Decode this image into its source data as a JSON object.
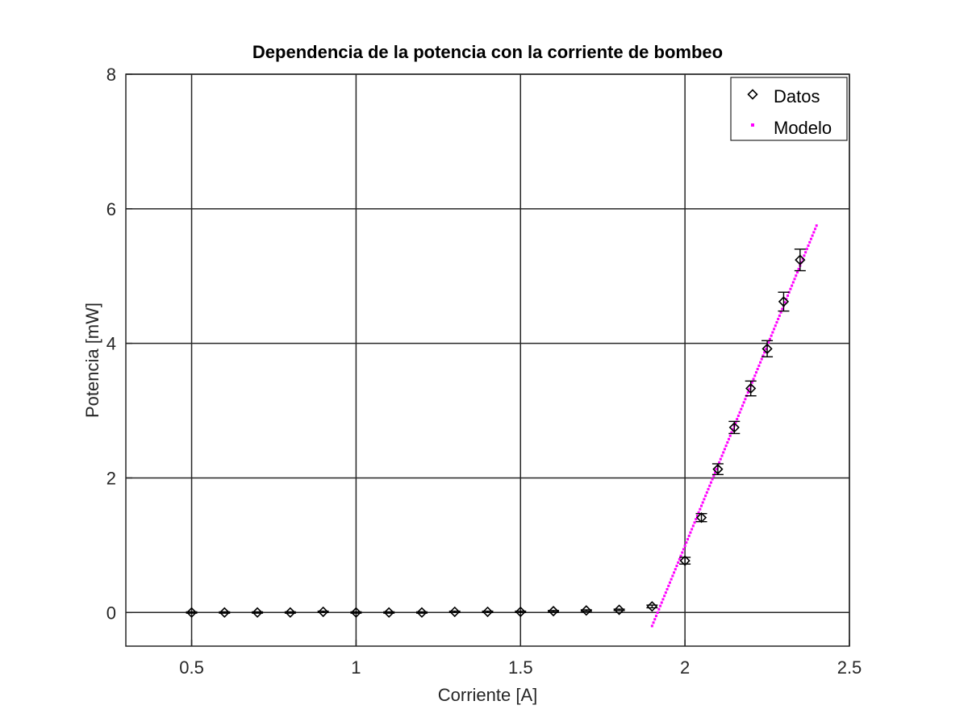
{
  "chart_data": {
    "type": "scatter",
    "title": "Dependencia de la potencia con la corriente de bombeo",
    "xlabel": "Corriente [A]",
    "ylabel": "Potencia [mW]",
    "xlim": [
      0.3,
      2.5
    ],
    "ylim": [
      -0.5,
      8
    ],
    "xticks": [
      0.5,
      1,
      1.5,
      2,
      2.5
    ],
    "xtick_labels": [
      "0.5",
      "1",
      "1.5",
      "2",
      "2.5"
    ],
    "yticks": [
      0,
      2,
      4,
      6,
      8
    ],
    "ytick_labels": [
      "0",
      "2",
      "4",
      "6",
      "8"
    ],
    "grid": true,
    "legend_position": "top-right",
    "series": [
      {
        "name": "Datos",
        "marker": "diamond",
        "color": "#000000",
        "x": [
          0.5,
          0.6,
          0.7,
          0.8,
          0.9,
          1.0,
          1.1,
          1.2,
          1.3,
          1.4,
          1.5,
          1.6,
          1.7,
          1.8,
          1.9,
          2.0,
          2.05,
          2.1,
          2.15,
          2.2,
          2.25,
          2.3,
          2.35
        ],
        "y": [
          0.0,
          0.0,
          0.0,
          0.0,
          0.01,
          0.0,
          0.0,
          0.0,
          0.01,
          0.01,
          0.01,
          0.02,
          0.03,
          0.04,
          0.09,
          0.77,
          1.41,
          2.13,
          2.75,
          3.33,
          3.92,
          4.62,
          5.24
        ],
        "error": [
          0.01,
          0.01,
          0.01,
          0.01,
          0.01,
          0.01,
          0.01,
          0.01,
          0.01,
          0.01,
          0.01,
          0.01,
          0.01,
          0.01,
          0.02,
          0.05,
          0.06,
          0.08,
          0.09,
          0.11,
          0.12,
          0.14,
          0.16
        ]
      },
      {
        "name": "Modelo",
        "marker": "dotted-line",
        "color": "#ff00ff",
        "x": [
          1.9,
          2.4
        ],
        "y": [
          -0.2,
          5.75
        ]
      }
    ]
  }
}
